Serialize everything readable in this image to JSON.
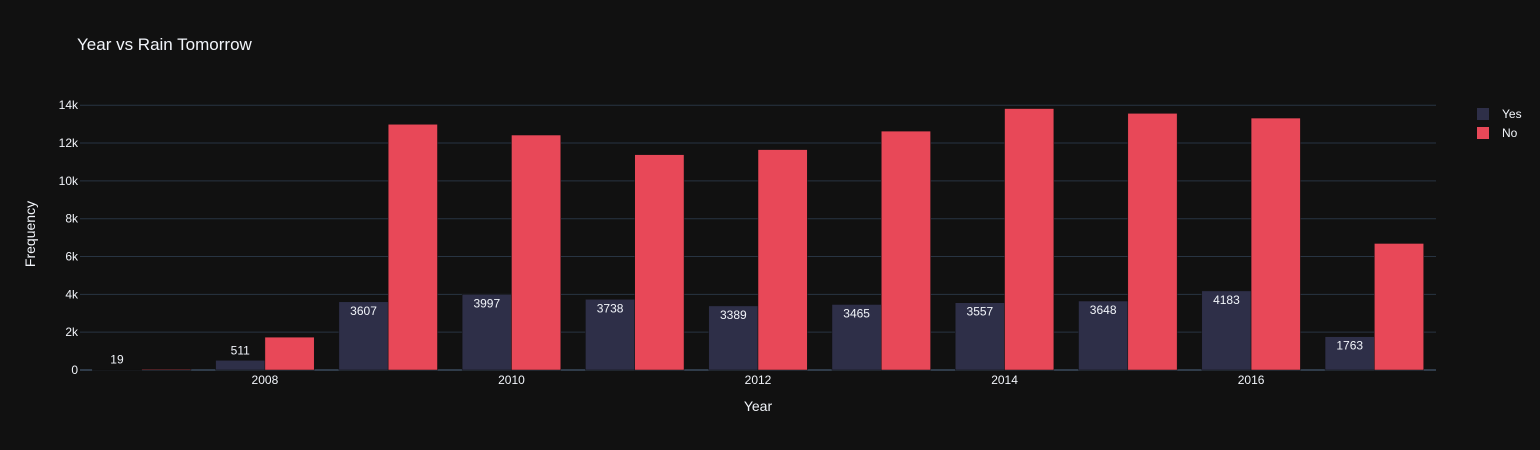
{
  "chart_data": {
    "type": "bar",
    "title": "Year vs Rain Tomorrow",
    "xlabel": "Year",
    "ylabel": "Frequency",
    "x": [
      2007,
      2008,
      2009,
      2010,
      2011,
      2012,
      2013,
      2014,
      2015,
      2016,
      2017
    ],
    "x_ticks": [
      2008,
      2010,
      2012,
      2014,
      2016
    ],
    "y_ticks": [
      0,
      2000,
      4000,
      6000,
      8000,
      10000,
      12000,
      14000
    ],
    "y_tick_labels": [
      "0",
      "2k",
      "4k",
      "6k",
      "8k",
      "10k",
      "12k",
      "14k"
    ],
    "ylim": [
      0,
      14700
    ],
    "grid": true,
    "legend_position": "top-right",
    "series": [
      {
        "name": "Yes",
        "color": "#2e2f48",
        "values": [
          19,
          511,
          3607,
          3997,
          3738,
          3389,
          3465,
          3557,
          3648,
          4183,
          1763
        ],
        "labels": [
          "19",
          "511",
          "3607",
          "3997",
          "3738",
          "3389",
          "3465",
          "3557",
          "3648",
          "4183",
          "1763"
        ]
      },
      {
        "name": "No",
        "color": "#e84858",
        "values": [
          42,
          1738,
          12992,
          12425,
          11388,
          11654,
          12632,
          13825,
          13570,
          13322,
          6692
        ]
      }
    ]
  }
}
